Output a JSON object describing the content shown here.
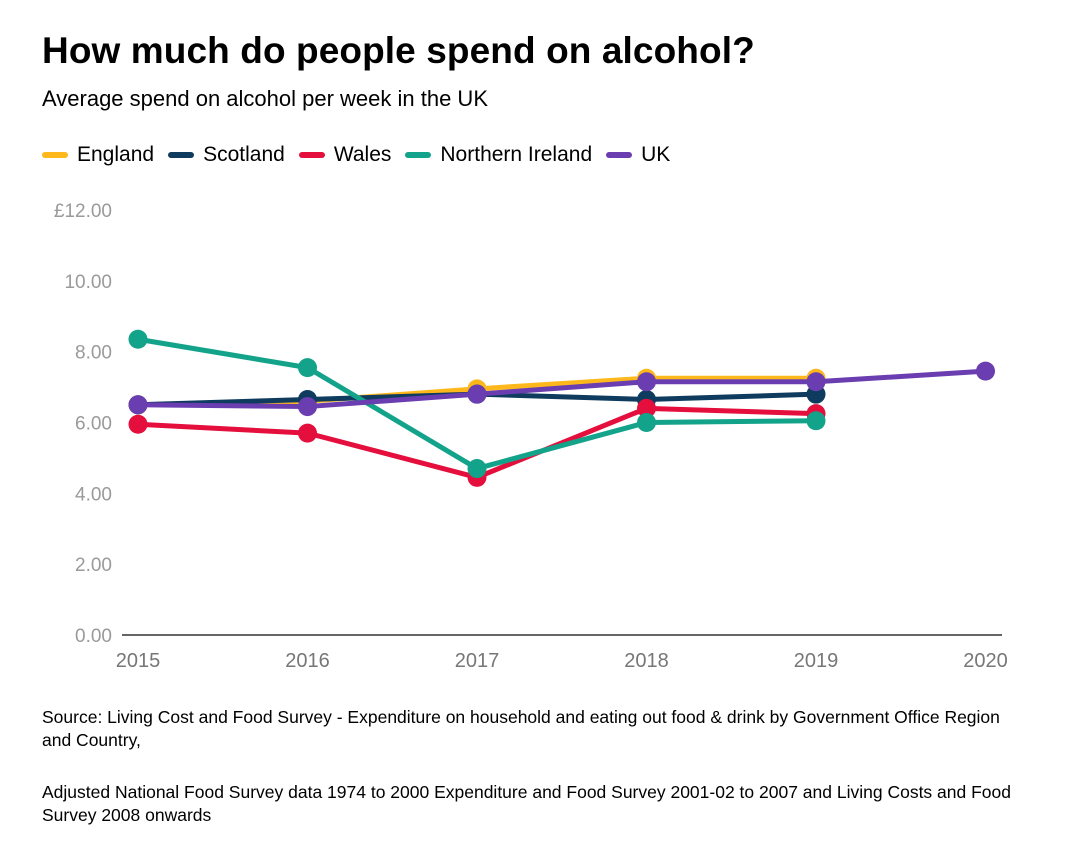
{
  "header": {
    "title": "How much do people spend on alcohol?",
    "subtitle": "Average spend on alcohol per week in the UK"
  },
  "chart_data": {
    "type": "line",
    "title": "How much do people spend on alcohol?",
    "subtitle": "Average spend on alcohol per week in the UK",
    "x": [
      "2015",
      "2016",
      "2017",
      "2018",
      "2019",
      "2020"
    ],
    "ylim": [
      0,
      12
    ],
    "yticks": [
      "0.00",
      "2.00",
      "4.00",
      "6.00",
      "8.00",
      "10.00",
      "£12.00"
    ],
    "grid": false,
    "legend_position": "top-left",
    "series": [
      {
        "name": "England",
        "color": "#FFB81C",
        "values": [
          6.5,
          6.6,
          6.95,
          7.25,
          7.25,
          null
        ]
      },
      {
        "name": "Scotland",
        "color": "#0F3B5F",
        "values": [
          6.5,
          6.65,
          6.8,
          6.65,
          6.8,
          null
        ]
      },
      {
        "name": "Wales",
        "color": "#E40F3D",
        "values": [
          5.95,
          5.7,
          4.45,
          6.4,
          6.25,
          null
        ]
      },
      {
        "name": "Northern Ireland",
        "color": "#12A38A",
        "values": [
          8.35,
          7.55,
          4.7,
          6.0,
          6.05,
          null
        ]
      },
      {
        "name": "UK",
        "color": "#6A3DB0",
        "values": [
          6.5,
          6.45,
          6.8,
          7.15,
          7.15,
          7.45
        ]
      }
    ]
  },
  "source": {
    "line1": "Source: Living Cost and Food Survey - Expenditure on household and eating out food & drink by Government Office Region and Country,",
    "line2": "Adjusted National Food Survey data 1974 to 2000 Expenditure and Food Survey 2001-02 to 2007 and Living Costs and Food Survey 2008 onwards"
  }
}
